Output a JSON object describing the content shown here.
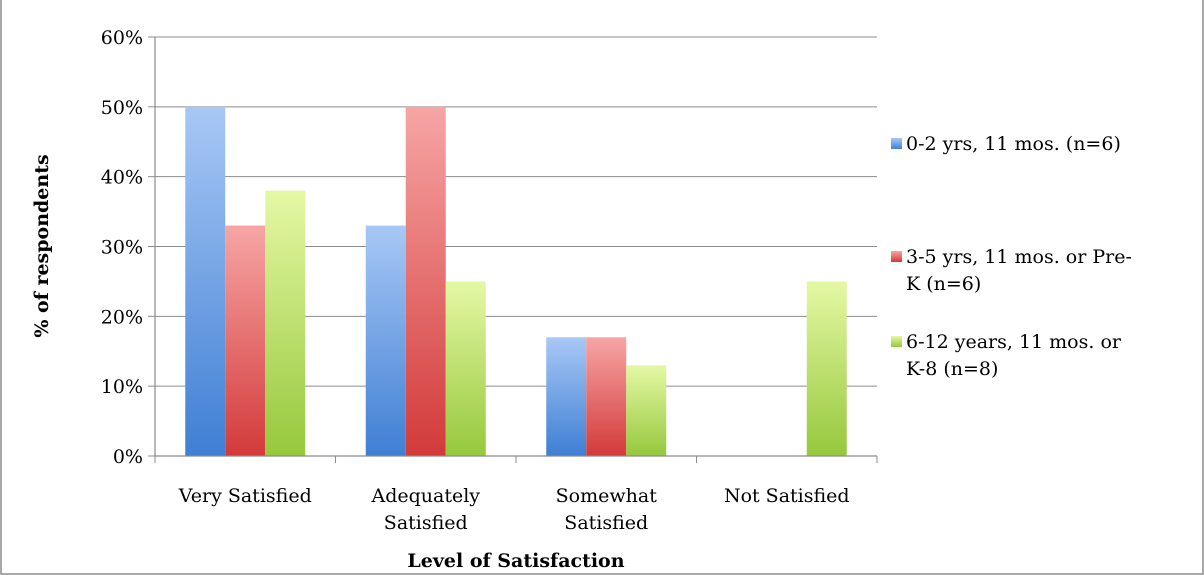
{
  "chart_data": {
    "type": "bar",
    "title": "",
    "xlabel": "Level of Satisfaction",
    "ylabel": "% of respondents",
    "ylim": [
      0,
      60
    ],
    "yticks": [
      "0%",
      "10%",
      "20%",
      "30%",
      "40%",
      "50%",
      "60%"
    ],
    "categories": [
      [
        "Very Satisfied"
      ],
      [
        "Adequately",
        "Satisfied"
      ],
      [
        "Somewhat",
        "Satisfied"
      ],
      [
        "Not Satisfied"
      ]
    ],
    "series": [
      {
        "name": [
          "0-2 yrs, 11 mos. (n=6)"
        ],
        "values": [
          50,
          33,
          17,
          0
        ],
        "color_top": "#a8c8f5",
        "color_bottom": "#3f7fd4"
      },
      {
        "name": [
          "3-5 yrs, 11 mos. or Pre-",
          "K (n=6)"
        ],
        "values": [
          33,
          50,
          17,
          0
        ],
        "color_top": "#f7a5a5",
        "color_bottom": "#d33a3a"
      },
      {
        "name": [
          "6-12 years, 11 mos. or",
          "K-8 (n=8)"
        ],
        "values": [
          38,
          25,
          13,
          25
        ],
        "color_top": "#e5f8a5",
        "color_bottom": "#96c83c"
      }
    ],
    "grid": true,
    "legend_position": "right"
  }
}
